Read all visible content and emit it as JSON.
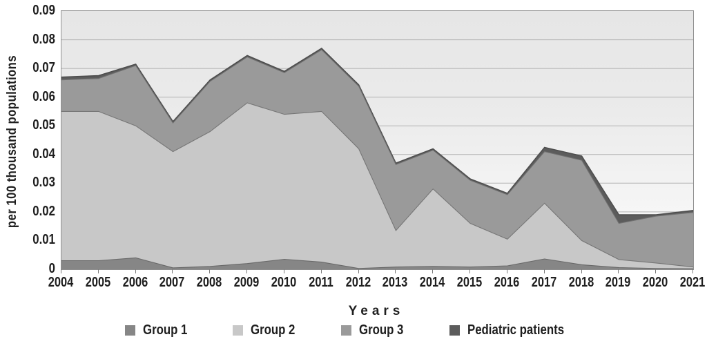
{
  "colors": {
    "gridline": "#b2b2b2",
    "axis": "#8f8f8f",
    "tick": "#7a7a7a",
    "text": "#1f1f1f"
  },
  "chart_data": {
    "type": "area",
    "stacked": true,
    "title": "",
    "xlabel": "Years",
    "ylabel": "per 100 thousand populations",
    "categories": [
      "2004",
      "2005",
      "2006",
      "2007",
      "2008",
      "2009",
      "2010",
      "2011",
      "2012",
      "2013",
      "2014",
      "2015",
      "2016",
      "2017",
      "2018",
      "2019",
      "2020",
      "2021"
    ],
    "ylim": [
      0,
      0.09
    ],
    "grid": "horizontal",
    "grid_values": [
      0.01,
      0.02,
      0.03,
      0.04,
      0.05,
      0.06,
      0.07,
      0.08
    ],
    "y_ticks": [
      {
        "label": "0.09",
        "value": 0.09
      },
      {
        "label": "0.08",
        "value": 0.08
      },
      {
        "label": "0.07",
        "value": 0.07
      },
      {
        "label": "0.06",
        "value": 0.06
      },
      {
        "label": "0.05",
        "value": 0.05
      },
      {
        "label": "0.04",
        "value": 0.04
      },
      {
        "label": "0.03",
        "value": 0.03
      },
      {
        "label": "0.02",
        "value": 0.02
      },
      {
        "label": "0.01",
        "value": 0.01
      },
      {
        "label": "0",
        "value": 0
      }
    ],
    "legend_position": "bottom",
    "series": [
      {
        "name": "Group 1",
        "color": "#868686",
        "edge": "#696969",
        "values": [
          0.003,
          0.003,
          0.004,
          0.0005,
          0.001,
          0.002,
          0.0035,
          0.0025,
          0.0003,
          0.0008,
          0.001,
          0.0008,
          0.0012,
          0.0036,
          0.0016,
          0.0006,
          0.0003,
          0.0002
        ]
      },
      {
        "name": "Group 2",
        "color": "#c8c8c8",
        "edge": "#767676",
        "values": [
          0.052,
          0.052,
          0.046,
          0.0405,
          0.047,
          0.056,
          0.0505,
          0.0525,
          0.0417,
          0.0127,
          0.027,
          0.0152,
          0.0093,
          0.0194,
          0.0084,
          0.0028,
          0.0019,
          0.0006
        ]
      },
      {
        "name": "Group 3",
        "color": "#9a9a9a",
        "edge": "#717171",
        "values": [
          0.011,
          0.0115,
          0.021,
          0.01,
          0.0175,
          0.016,
          0.0145,
          0.0215,
          0.0218,
          0.023,
          0.0135,
          0.015,
          0.0155,
          0.018,
          0.028,
          0.0126,
          0.0163,
          0.019
        ]
      },
      {
        "name": "Pediatric patients",
        "color": "#5c5c5c",
        "edge": "#4d4d4d",
        "values": [
          0.001,
          0.001,
          0.0005,
          0.0005,
          0.0005,
          0.0005,
          0.0005,
          0.0005,
          0.0005,
          0.0005,
          0.0005,
          0.0005,
          0.0005,
          0.0015,
          0.0015,
          0.003,
          0.0005,
          0.0007
        ]
      }
    ]
  }
}
